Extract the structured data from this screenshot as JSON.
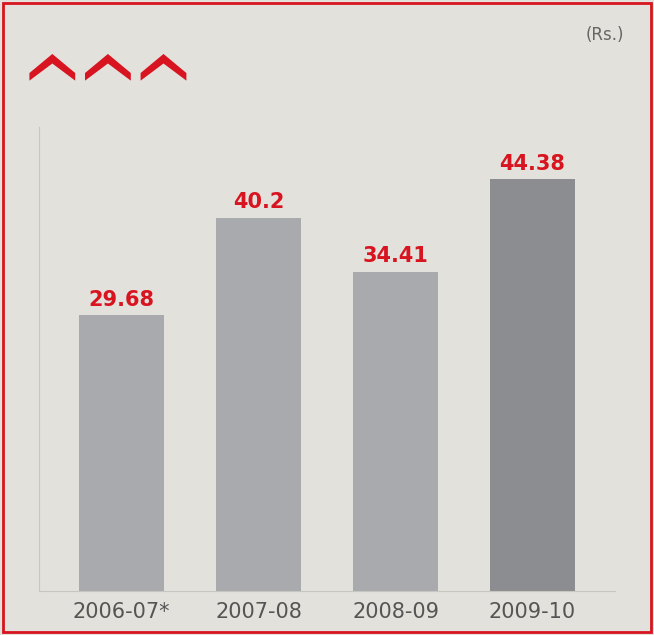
{
  "chart_data": {
    "type": "bar",
    "ylabel": "(Rs.)",
    "categories": [
      "2006-07*",
      "2007-08",
      "2008-09",
      "2009-10"
    ],
    "values": [
      29.68,
      40.2,
      34.41,
      44.38
    ],
    "colors": [
      "#a9aaad",
      "#a9aaad",
      "#a9aaad",
      "#8c8d90"
    ],
    "ylim": [
      0,
      50
    ],
    "yticks": [],
    "tick_labels": "x",
    "data_labels": true,
    "grid": false
  }
}
